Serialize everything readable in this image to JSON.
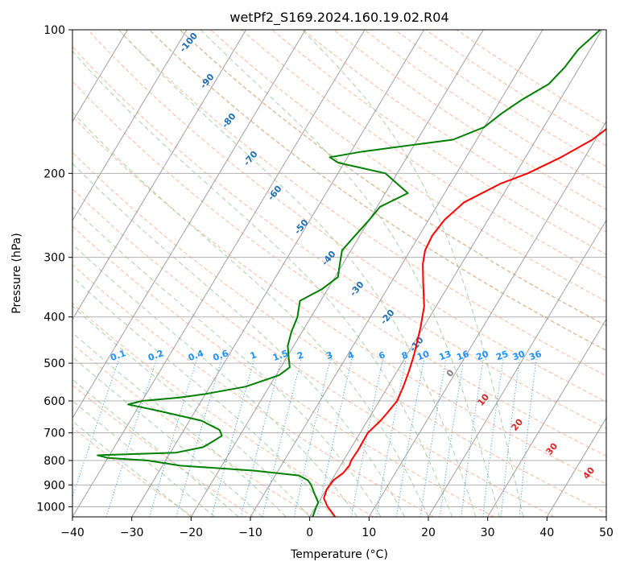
{
  "chart_data": {
    "type": "line",
    "title": "wetPf2_S169.2024.160.19.02.R04",
    "xlabel": "Temperature (°C)",
    "ylabel": "Pressure (hPa)",
    "xlim": [
      -40,
      50
    ],
    "ylim": [
      1050,
      100
    ],
    "y_scale": "log",
    "grid": true,
    "x_ticks": [
      "−40",
      "−30",
      "−20",
      "−10",
      "0",
      "10",
      "20",
      "30",
      "40",
      "50"
    ],
    "x_tick_values": [
      -40,
      -30,
      -20,
      -10,
      0,
      10,
      20,
      30,
      40,
      50
    ],
    "y_ticks": [
      "100",
      "200",
      "300",
      "400",
      "500",
      "600",
      "700",
      "800",
      "900",
      "1000"
    ],
    "y_tick_values": [
      100,
      200,
      300,
      400,
      500,
      600,
      700,
      800,
      900,
      1000
    ],
    "series": [
      {
        "color": "#ff0000",
        "points": [
          [
            1050,
            4.3
          ],
          [
            1000,
            2
          ],
          [
            960,
            0.5
          ],
          [
            920,
            0.1
          ],
          [
            880,
            0.3
          ],
          [
            850,
            1.2
          ],
          [
            820,
            1.5
          ],
          [
            800,
            1.3
          ],
          [
            760,
            1.4
          ],
          [
            700,
            1.3
          ],
          [
            660,
            2.2
          ],
          [
            640,
            2.5
          ],
          [
            600,
            3
          ],
          [
            560,
            2.6
          ],
          [
            520,
            2
          ],
          [
            480,
            1.2
          ],
          [
            420,
            -0.5
          ],
          [
            380,
            -2
          ],
          [
            340,
            -4.5
          ],
          [
            310,
            -6.5
          ],
          [
            290,
            -7.5
          ],
          [
            270,
            -7.8
          ],
          [
            250,
            -7.3
          ],
          [
            230,
            -5.8
          ],
          [
            210,
            -1.5
          ],
          [
            200,
            2
          ],
          [
            185,
            6
          ],
          [
            170,
            9.5
          ],
          [
            160,
            11
          ],
          [
            150,
            12.6
          ],
          [
            140,
            14.6
          ],
          [
            130,
            16.7
          ],
          [
            120,
            18.8
          ],
          [
            110,
            21.5
          ],
          [
            100,
            24
          ]
        ]
      },
      {
        "color": "#008000",
        "points": [
          [
            1050,
            0.5
          ],
          [
            1000,
            0.1
          ],
          [
            980,
            0
          ],
          [
            940,
            -1.5
          ],
          [
            900,
            -3
          ],
          [
            880,
            -4
          ],
          [
            860,
            -6
          ],
          [
            840,
            -14
          ],
          [
            820,
            -27
          ],
          [
            800,
            -33
          ],
          [
            790,
            -40
          ],
          [
            780,
            -42
          ],
          [
            770,
            -29
          ],
          [
            750,
            -25
          ],
          [
            730,
            -24
          ],
          [
            710,
            -23
          ],
          [
            690,
            -24
          ],
          [
            660,
            -28
          ],
          [
            630,
            -36
          ],
          [
            610,
            -42
          ],
          [
            600,
            -40
          ],
          [
            590,
            -34
          ],
          [
            580,
            -30
          ],
          [
            560,
            -24
          ],
          [
            530,
            -19.5
          ],
          [
            510,
            -18.5
          ],
          [
            490,
            -19.5
          ],
          [
            460,
            -21
          ],
          [
            430,
            -21.8
          ],
          [
            400,
            -22.3
          ],
          [
            370,
            -23.5
          ],
          [
            350,
            -21
          ],
          [
            330,
            -19.5
          ],
          [
            310,
            -20.5
          ],
          [
            290,
            -21.5
          ],
          [
            270,
            -20.8
          ],
          [
            250,
            -20
          ],
          [
            235,
            -19.5
          ],
          [
            220,
            -16.2
          ],
          [
            200,
            -22
          ],
          [
            190,
            -31
          ],
          [
            185,
            -33
          ],
          [
            180,
            -28
          ],
          [
            170,
            -14
          ],
          [
            160,
            -10
          ],
          [
            150,
            -8.5
          ],
          [
            140,
            -6.4
          ],
          [
            130,
            -3.5
          ],
          [
            120,
            -2.5
          ],
          [
            110,
            -2
          ],
          [
            100,
            -0.3
          ]
        ]
      }
    ],
    "dry_adiabat_labels": [
      "-100",
      "-90",
      "-80",
      "-70",
      "-60",
      "-50",
      "-40",
      "-30",
      "-20",
      "-10",
      "0",
      "10",
      "20",
      "30",
      "40"
    ],
    "mixing_ratio_labels": [
      "0.1",
      "0.2",
      "0.4",
      "0.6",
      "1",
      "1.5",
      "2",
      "3",
      "4",
      "6",
      "8",
      "10",
      "13",
      "16",
      "20",
      "25",
      "30",
      "36"
    ]
  },
  "colors": {
    "temperature": "#ff0000",
    "dewpoint": "#008000",
    "isotherm": "#a0a0a0",
    "isobar": "#b0b0b0",
    "dry_adiabat": "#ffa07a",
    "moist_adiabat": "#90c890",
    "mixing_ratio": "#1e90ff",
    "label_dark_blue": "#1f6fb4",
    "label_red": "#d62728",
    "label_gray": "#808080"
  }
}
